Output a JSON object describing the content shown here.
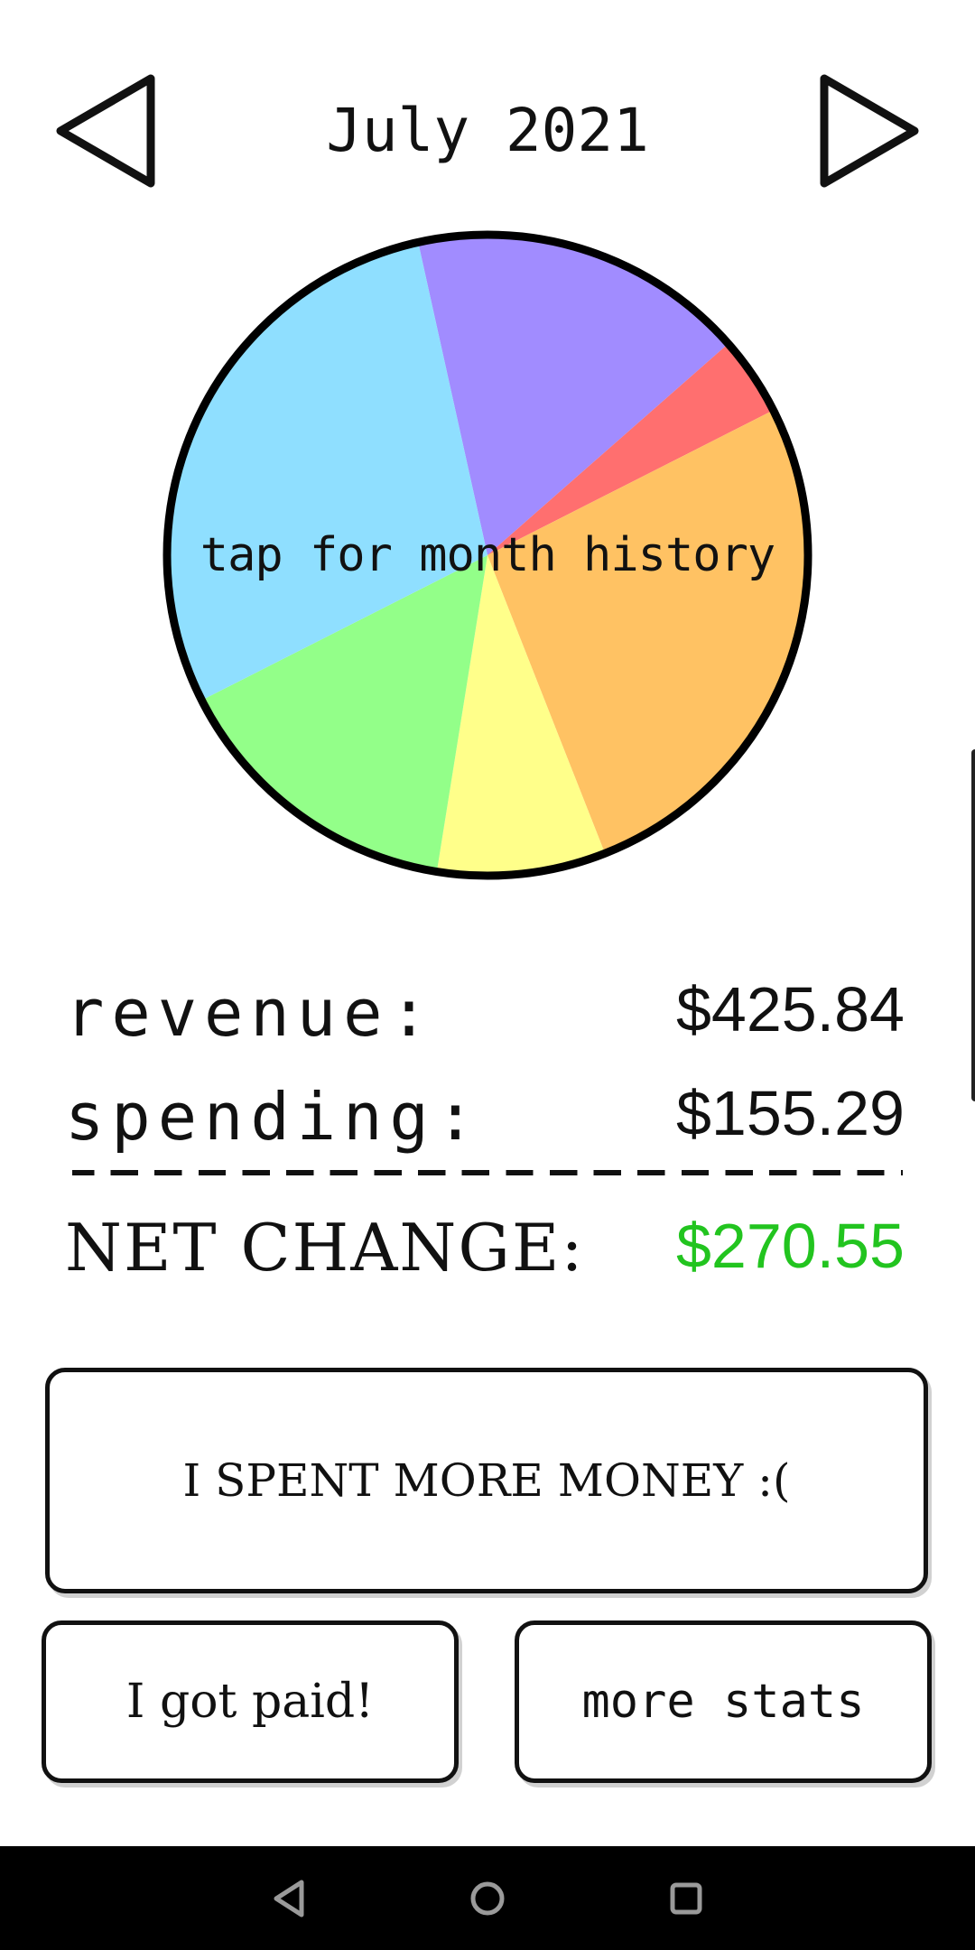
{
  "header": {
    "title": "July 2021",
    "prev_icon": "triangle-left-icon",
    "next_icon": "triangle-right-icon"
  },
  "chart_data": {
    "type": "pie",
    "hint": "tap for month history",
    "slices": [
      {
        "color": "#a18cff",
        "value": 17.0
      },
      {
        "color": "#ff6f6f",
        "value": 4.0
      },
      {
        "color": "#ffc263",
        "value": 26.5
      },
      {
        "color": "#ffff8a",
        "value": 8.5
      },
      {
        "color": "#93ff89",
        "value": 15.0
      },
      {
        "color": "#8fdfff",
        "value": 29.0
      }
    ],
    "start_angle_deg": -12.5,
    "outline_color": "#000000"
  },
  "totals": {
    "revenue_label": "revenue:",
    "revenue_value": "$425.84",
    "spending_label": "spending:",
    "spending_value": "$155.29",
    "net_label": "NET CHANGE:",
    "net_value": "$270.55",
    "net_color": "#22c41f"
  },
  "buttons": {
    "spent": "I SPENT MORE MONEY :(",
    "paid": "I got paid!",
    "stats": "more stats"
  },
  "system_nav": {
    "back_icon": "back-triangle-icon",
    "home_icon": "home-circle-icon",
    "recents_icon": "recents-square-icon"
  }
}
